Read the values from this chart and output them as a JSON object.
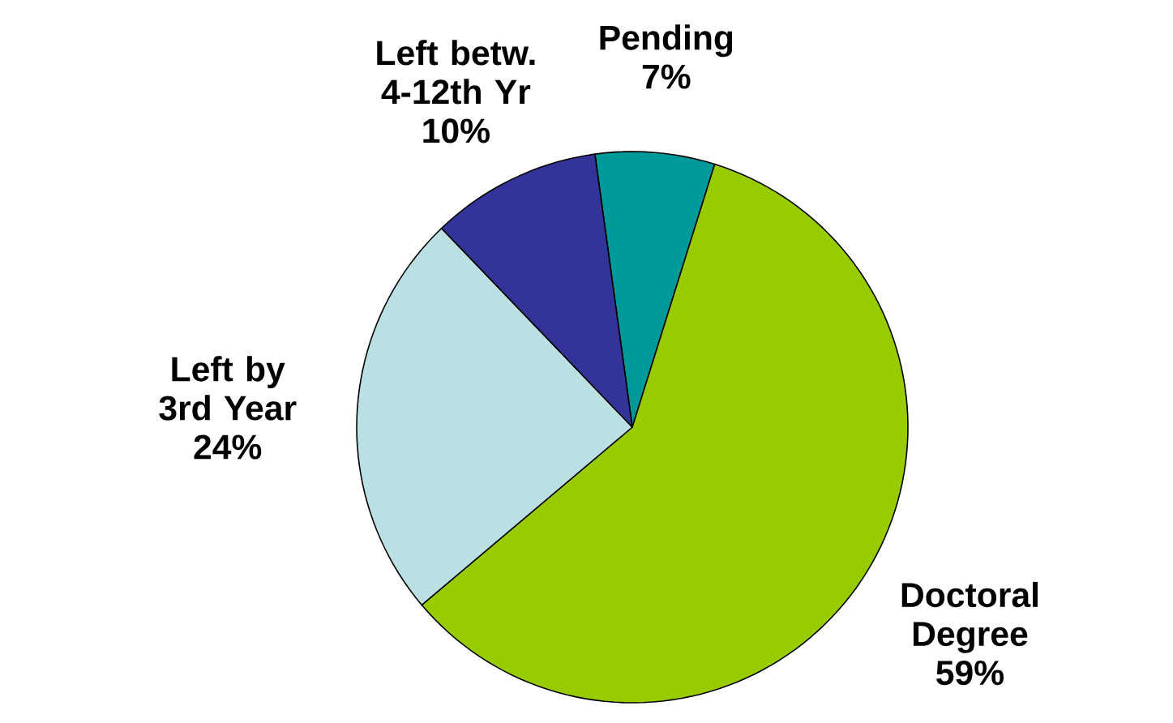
{
  "chart_data": {
    "type": "pie",
    "categories": [
      "Pending",
      "Doctoral Degree",
      "Left by 3rd Year",
      "Left betw. 4-12th Yr"
    ],
    "values": [
      7,
      59,
      24,
      10
    ],
    "value_labels": [
      "7%",
      "59%",
      "24%",
      "10%"
    ],
    "colors": [
      "#009999",
      "#99cc00",
      "#bbe0e3",
      "#333399"
    ]
  }
}
